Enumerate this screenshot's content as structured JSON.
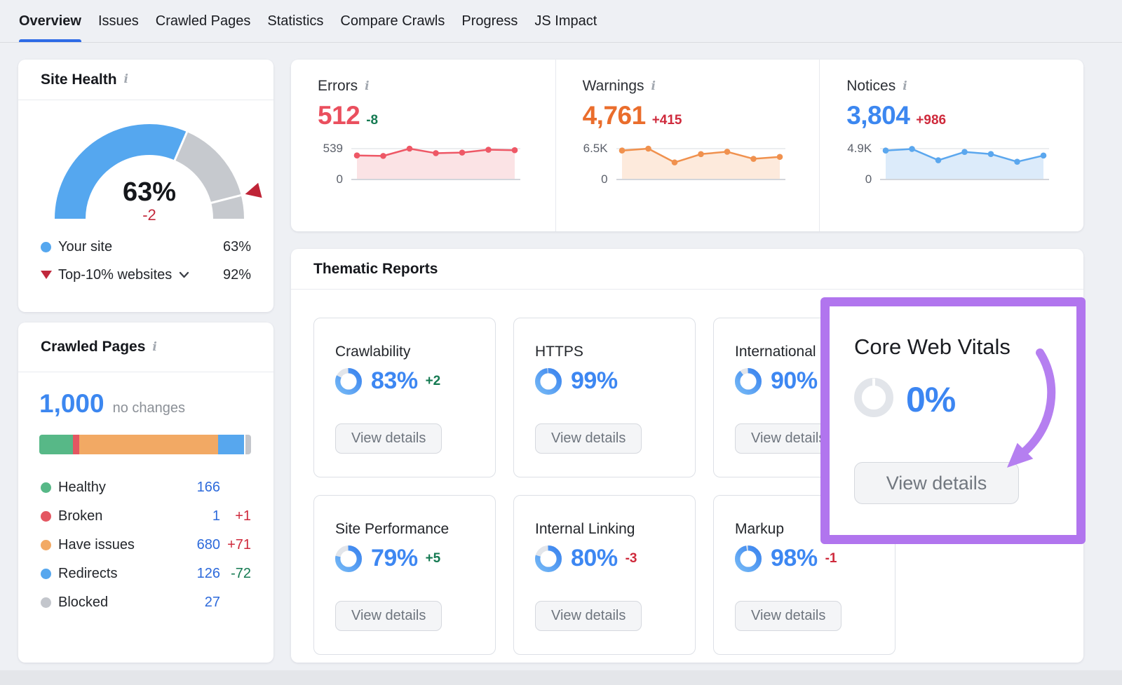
{
  "nav": {
    "tabs": [
      "Overview",
      "Issues",
      "Crawled Pages",
      "Statistics",
      "Compare Crawls",
      "Progress",
      "JS Impact"
    ],
    "active": "Overview",
    "accent": "#2e6be6"
  },
  "site_health": {
    "title": "Site Health",
    "score": "63%",
    "score_value": 63,
    "score_delta": "-2",
    "your_site": {
      "label": "Your site",
      "value": "63%"
    },
    "benchmark": {
      "label": "Top-10% websites",
      "value": "92%",
      "value_pct": 92
    },
    "colors": {
      "fill": "#55a7ef",
      "track": "#c6c9ce",
      "marker": "#bf2437"
    }
  },
  "stats": {
    "items": [
      {
        "title": "Errors",
        "value": "512",
        "delta": "-8",
        "delta_tone": "good",
        "value_color": "#ea4f5e",
        "line": "#ee5866",
        "fill": "#fbe3e5",
        "y_max_label": "539",
        "y_min_label": "0",
        "y_max": 539,
        "chart_values": [
          420,
          412,
          539,
          460,
          470,
          520,
          512
        ]
      },
      {
        "title": "Warnings",
        "value": "4,761",
        "delta": "+415",
        "delta_tone": "bad",
        "value_color": "#ea6d2c",
        "line": "#f0914e",
        "fill": "#fdeadc",
        "y_max_label": "6.5K",
        "y_min_label": "0",
        "y_max": 6500,
        "chart_values": [
          6100,
          6500,
          3600,
          5350,
          5850,
          4350,
          4761
        ]
      },
      {
        "title": "Notices",
        "value": "3,804",
        "delta": "+986",
        "delta_tone": "bad",
        "value_color": "#3c87f0",
        "line": "#5ba7ee",
        "fill": "#dcebfa",
        "y_max_label": "4.9K",
        "y_min_label": "0",
        "y_max": 4900,
        "chart_values": [
          4600,
          4850,
          3060,
          4380,
          4040,
          2820,
          3804
        ]
      }
    ]
  },
  "crawled_pages": {
    "title": "Crawled Pages",
    "total": "1,000",
    "total_value": 1000,
    "note": "no changes",
    "segments": [
      {
        "label": "Healthy",
        "value": 166,
        "value_text": "166",
        "delta": "",
        "delta_tone": "",
        "color": "#57b887"
      },
      {
        "label": "Broken",
        "value": 1,
        "value_text": "1",
        "delta": "+1",
        "delta_tone": "bad",
        "color": "#e45762"
      },
      {
        "label": "Have issues",
        "value": 680,
        "value_text": "680",
        "delta": "+71",
        "delta_tone": "bad",
        "color": "#f2a964"
      },
      {
        "label": "Redirects",
        "value": 126,
        "value_text": "126",
        "delta": "-72",
        "delta_tone": "good",
        "color": "#57a7ee"
      },
      {
        "label": "Blocked",
        "value": 27,
        "value_text": "27",
        "delta": "",
        "delta_tone": "",
        "color": "#c3c6cc"
      }
    ]
  },
  "thematic": {
    "title": "Thematic Reports",
    "view_details_label": "View details",
    "cards": [
      {
        "name": "Crawlability",
        "pct": 83,
        "pct_text": "83%",
        "delta": "+2",
        "delta_tone": "good",
        "col": 0,
        "row": 0
      },
      {
        "name": "HTTPS",
        "pct": 99,
        "pct_text": "99%",
        "delta": "",
        "delta_tone": "",
        "col": 1,
        "row": 0
      },
      {
        "name": "International",
        "pct": 90,
        "pct_text": "90%",
        "delta": "",
        "delta_tone": "",
        "col": 2,
        "row": 0
      },
      {
        "name": "Site Performance",
        "pct": 79,
        "pct_text": "79%",
        "delta": "+5",
        "delta_tone": "good",
        "col": 0,
        "row": 1
      },
      {
        "name": "Internal Linking",
        "pct": 80,
        "pct_text": "80%",
        "delta": "-3",
        "delta_tone": "bad",
        "col": 1,
        "row": 1
      },
      {
        "name": "Markup",
        "pct": 98,
        "pct_text": "98%",
        "delta": "-1",
        "delta_tone": "bad",
        "col": 2,
        "row": 1
      }
    ],
    "highlight": {
      "name": "Core Web Vitals",
      "pct": 0,
      "pct_text": "0%",
      "view_details_label": "View details",
      "accent": "#b175ee"
    }
  }
}
